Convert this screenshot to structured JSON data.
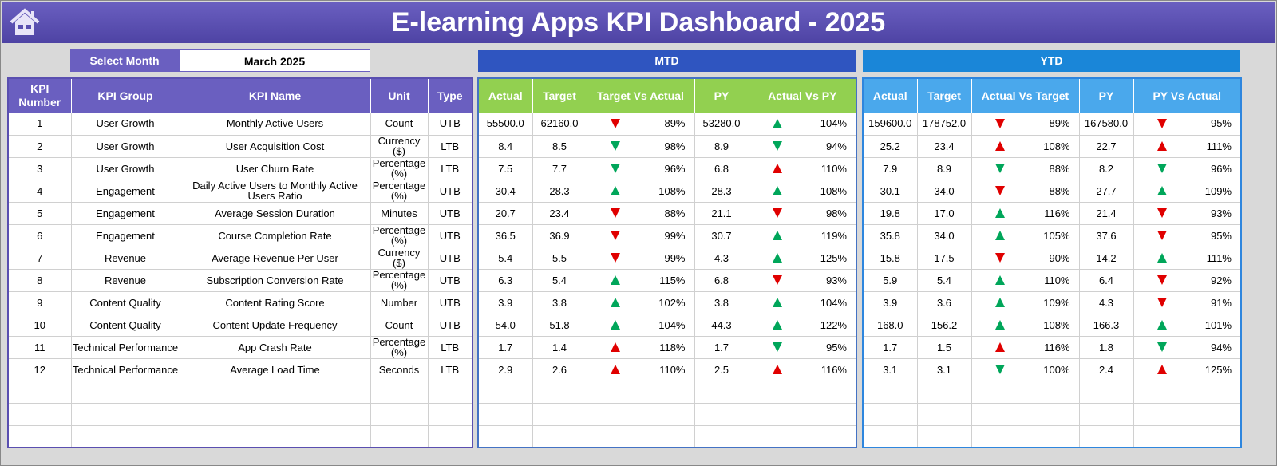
{
  "title": "E-learning Apps KPI Dashboard - 2025",
  "select_month": {
    "label": "Select Month",
    "value": "March 2025"
  },
  "bands": {
    "mtd": "MTD",
    "ytd": "YTD"
  },
  "colors": {
    "header_purple": "#6a5fc0",
    "mtd_band": "#2f55c0",
    "ytd_band": "#1a86d8",
    "mtd_header": "#92d050",
    "ytd_header": "#4aa8ec",
    "good": "#00a65a",
    "bad": "#e00000"
  },
  "left_headers": [
    "KPI Number",
    "KPI Group",
    "KPI Name",
    "Unit",
    "Type"
  ],
  "mtd_headers": [
    "Actual",
    "Target",
    "Target Vs Actual",
    "PY",
    "Actual Vs PY"
  ],
  "ytd_headers": [
    "Actual",
    "Target",
    "Actual Vs Target",
    "PY",
    "PY Vs Actual"
  ],
  "kpis": [
    [
      "1",
      "User Growth",
      "Monthly Active Users",
      "Count",
      "UTB"
    ],
    [
      "2",
      "User Growth",
      "User Acquisition Cost",
      "Currency ($)",
      "LTB"
    ],
    [
      "3",
      "User Growth",
      "User Churn Rate",
      "Percentage (%)",
      "LTB"
    ],
    [
      "4",
      "Engagement",
      "Daily Active Users to Monthly Active Users Ratio",
      "Percentage (%)",
      "UTB"
    ],
    [
      "5",
      "Engagement",
      "Average Session Duration",
      "Minutes",
      "UTB"
    ],
    [
      "6",
      "Engagement",
      "Course Completion Rate",
      "Percentage (%)",
      "UTB"
    ],
    [
      "7",
      "Revenue",
      "Average Revenue Per User",
      "Currency ($)",
      "UTB"
    ],
    [
      "8",
      "Revenue",
      "Subscription Conversion Rate",
      "Percentage (%)",
      "UTB"
    ],
    [
      "9",
      "Content Quality",
      "Content Rating Score",
      "Number",
      "UTB"
    ],
    [
      "10",
      "Content Quality",
      "Content Update Frequency",
      "Count",
      "UTB"
    ],
    [
      "11",
      "Technical Performance",
      "App Crash Rate",
      "Percentage (%)",
      "LTB"
    ],
    [
      "12",
      "Technical Performance",
      "Average Load Time",
      "Seconds",
      "LTB"
    ]
  ],
  "mtd": [
    [
      "55500.0",
      "62160.0",
      "down-red",
      "89%",
      "53280.0",
      "up-green",
      "104%"
    ],
    [
      "8.4",
      "8.5",
      "down-green",
      "98%",
      "8.9",
      "down-green",
      "94%"
    ],
    [
      "7.5",
      "7.7",
      "down-green",
      "96%",
      "6.8",
      "up-red",
      "110%"
    ],
    [
      "30.4",
      "28.3",
      "up-green",
      "108%",
      "28.3",
      "up-green",
      "108%"
    ],
    [
      "20.7",
      "23.4",
      "down-red",
      "88%",
      "21.1",
      "down-red",
      "98%"
    ],
    [
      "36.5",
      "36.9",
      "down-red",
      "99%",
      "30.7",
      "up-green",
      "119%"
    ],
    [
      "5.4",
      "5.5",
      "down-red",
      "99%",
      "4.3",
      "up-green",
      "125%"
    ],
    [
      "6.3",
      "5.4",
      "up-green",
      "115%",
      "6.8",
      "down-red",
      "93%"
    ],
    [
      "3.9",
      "3.8",
      "up-green",
      "102%",
      "3.8",
      "up-green",
      "104%"
    ],
    [
      "54.0",
      "51.8",
      "up-green",
      "104%",
      "44.3",
      "up-green",
      "122%"
    ],
    [
      "1.7",
      "1.4",
      "up-red",
      "118%",
      "1.7",
      "down-green",
      "95%"
    ],
    [
      "2.9",
      "2.6",
      "up-red",
      "110%",
      "2.5",
      "up-red",
      "116%"
    ]
  ],
  "ytd": [
    [
      "159600.0",
      "178752.0",
      "down-red",
      "89%",
      "167580.0",
      "down-red",
      "95%"
    ],
    [
      "25.2",
      "23.4",
      "up-red",
      "108%",
      "22.7",
      "up-red",
      "111%"
    ],
    [
      "7.9",
      "8.9",
      "down-green",
      "88%",
      "8.2",
      "down-green",
      "96%"
    ],
    [
      "30.1",
      "34.0",
      "down-red",
      "88%",
      "27.7",
      "up-green",
      "109%"
    ],
    [
      "19.8",
      "17.0",
      "up-green",
      "116%",
      "21.4",
      "down-red",
      "93%"
    ],
    [
      "35.8",
      "34.0",
      "up-green",
      "105%",
      "37.6",
      "down-red",
      "95%"
    ],
    [
      "15.8",
      "17.5",
      "down-red",
      "90%",
      "14.2",
      "up-green",
      "111%"
    ],
    [
      "5.9",
      "5.4",
      "up-green",
      "110%",
      "6.4",
      "down-red",
      "92%"
    ],
    [
      "3.9",
      "3.6",
      "up-green",
      "109%",
      "4.3",
      "down-red",
      "91%"
    ],
    [
      "168.0",
      "156.2",
      "up-green",
      "108%",
      "166.3",
      "up-green",
      "101%"
    ],
    [
      "1.7",
      "1.5",
      "up-red",
      "116%",
      "1.8",
      "down-green",
      "94%"
    ],
    [
      "3.1",
      "3.1",
      "down-green",
      "100%",
      "2.4",
      "up-red",
      "125%"
    ]
  ]
}
